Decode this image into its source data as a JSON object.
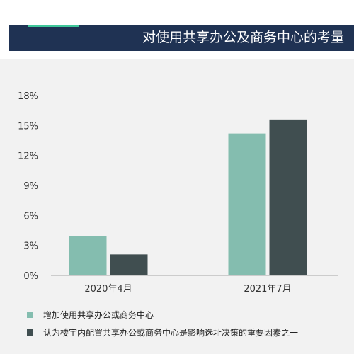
{
  "header": {
    "title": "对使用共享办公及商务中心的考量"
  },
  "colors": {
    "header_bg": "#1f3253",
    "header_accent": "#3fc79a",
    "series_1": "#84bdaf",
    "series_2": "#404e50",
    "panel_bg": "#f2f2f2"
  },
  "chart_data": {
    "type": "bar",
    "categories": [
      "2020年4月",
      "2021年7月"
    ],
    "series": [
      {
        "name": "增加使用共享办公或商务中心",
        "values": [
          3.9,
          14.2
        ]
      },
      {
        "name": "认为楼宇内配置共享办公或商务中心是影响选址决策的重要因素之一",
        "values": [
          2.1,
          15.6
        ]
      }
    ],
    "yticks": [
      "0%",
      "3%",
      "6%",
      "9%",
      "12%",
      "15%",
      "18%"
    ],
    "ylim": [
      0,
      18
    ],
    "grid": false,
    "legend_position": "bottom-left"
  }
}
